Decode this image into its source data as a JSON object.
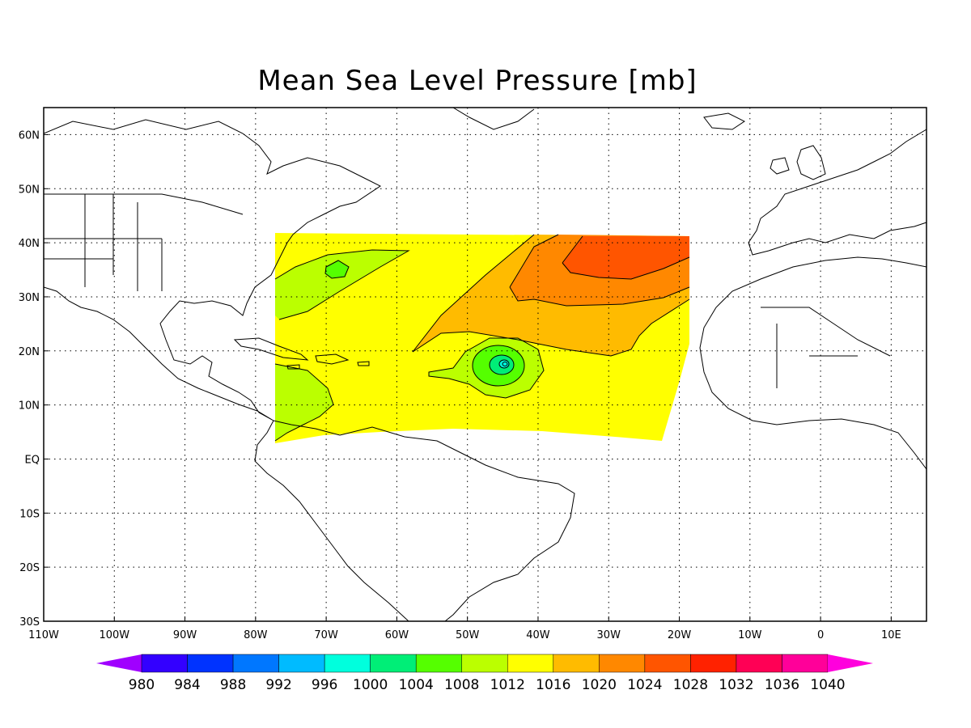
{
  "title": "Mean Sea Level Pressure [mb]",
  "map": {
    "lon_range": [
      -110,
      15
    ],
    "lat_range": [
      -30,
      65
    ],
    "grid": "dotted",
    "lon_ticks": [
      {
        "value": -110,
        "label": "110W"
      },
      {
        "value": -100,
        "label": "100W"
      },
      {
        "value": -90,
        "label": "90W"
      },
      {
        "value": -80,
        "label": "80W"
      },
      {
        "value": -70,
        "label": "70W"
      },
      {
        "value": -60,
        "label": "60W"
      },
      {
        "value": -50,
        "label": "50W"
      },
      {
        "value": -40,
        "label": "40W"
      },
      {
        "value": -30,
        "label": "30W"
      },
      {
        "value": -20,
        "label": "20W"
      },
      {
        "value": -10,
        "label": "10W"
      },
      {
        "value": 0,
        "label": "0"
      },
      {
        "value": 10,
        "label": "10E"
      }
    ],
    "lat_ticks": [
      {
        "value": 60,
        "label": "60N"
      },
      {
        "value": 50,
        "label": "50N"
      },
      {
        "value": 40,
        "label": "40N"
      },
      {
        "value": 30,
        "label": "30N"
      },
      {
        "value": 20,
        "label": "20N"
      },
      {
        "value": 10,
        "label": "10N"
      },
      {
        "value": 0,
        "label": "EQ"
      },
      {
        "value": -10,
        "label": "10S"
      },
      {
        "value": -20,
        "label": "20S"
      },
      {
        "value": -30,
        "label": "30S"
      }
    ]
  },
  "colorbar": {
    "colors": [
      "#a000ff",
      "#3300ff",
      "#0033ff",
      "#0077ff",
      "#00bbff",
      "#00ffdd",
      "#00ee77",
      "#55ff00",
      "#bbff00",
      "#ffff00",
      "#ffbb00",
      "#ff8800",
      "#ff5500",
      "#ff2200",
      "#ff0055",
      "#ff0099",
      "#ff00dd"
    ],
    "labels": [
      "980",
      "984",
      "988",
      "992",
      "996",
      "1000",
      "1004",
      "1008",
      "1012",
      "1016",
      "1020",
      "1024",
      "1028",
      "1032",
      "1036",
      "1040"
    ]
  },
  "field_colors": {
    "p1008": "#bbff00",
    "p1012": "#ffff00",
    "p1016": "#ffbb00",
    "p1020": "#ff8800",
    "p1024": "#ff5500",
    "p1004": "#55ff00",
    "p1000": "#00ee77",
    "p996": "#00ffdd"
  }
}
